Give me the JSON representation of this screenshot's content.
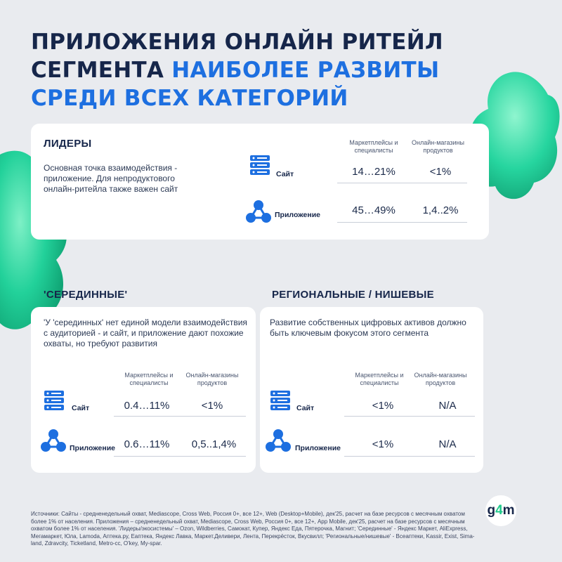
{
  "title": {
    "line_dark": "ПРИЛОЖЕНИЯ ОНЛАЙН РИТЕЙЛ СЕГМЕНТА",
    "line_blue": "НАИБОЛЕЕ РАЗВИТЫ СРЕДИ ВСЕХ КАТЕГОРИЙ"
  },
  "leaders": {
    "heading": "ЛИДЕРЫ",
    "description": "Основная точка взаимодействия - приложение. Для непродуктового онлайн-ритейла также важен  сайт",
    "col1": "Маркетплейсы и специалисты",
    "col2": "Онлайн-магазины продуктов",
    "rows": [
      {
        "label": "Сайт",
        "icon": "server-icon",
        "v1": "14…21%",
        "v2": "<1%"
      },
      {
        "label": "Приложение",
        "icon": "app-network-icon",
        "v1": "45…49%",
        "v2": "1,4..2%"
      }
    ]
  },
  "middle": {
    "heading": "'СЕРЕДИННЫЕ'",
    "description": "'У 'серединных' нет единой модели взаимодействия с аудиторией - и сайт, и приложение дают похожие охваты, но требуют развития",
    "col1": "Маркетплейсы и специалисты",
    "col2": "Онлайн-магазины продуктов",
    "rows": [
      {
        "label": "Сайт",
        "icon": "server-icon",
        "v1": "0.4…11%",
        "v2": "<1%"
      },
      {
        "label": "Приложение",
        "icon": "app-network-icon",
        "v1": "0.6…11%",
        "v2": "0,5..1,4%"
      }
    ]
  },
  "regional": {
    "heading": "РЕГИОНАЛЬНЫЕ / НИШЕВЫЕ",
    "description": "Развитие собственных цифровых активов должно быть ключевым фокусом этого сегмента",
    "col1": "Маркетплейсы и специалисты",
    "col2": "Онлайн-магазины продуктов",
    "rows": [
      {
        "label": "Сайт",
        "icon": "server-icon",
        "v1": "<1%",
        "v2": "N/A"
      },
      {
        "label": "Приложение",
        "icon": "app-network-icon",
        "v1": "<1%",
        "v2": "N/A"
      }
    ]
  },
  "sources": "Источники: Сайты  - средненедельный охват, Mediascope, Cross Web, Россия 0+, все 12+, Web (Desktop+Mobile), дек'25, расчет на базе ресурсов с месячным охватом более 1% от населения. Приложения – средненедельный охват, Mediascope, Cross Web, Россия 0+, все 12+, App Mobile, дек'25, расчет на базе ресурсов с месячным охватом более 1% от населения. 'Лидеры/экосистемы' – Ozon, Wildberries, Самокат, Купер, Яндекс Еда, Пятерочка, Магнит; 'Серединные' - Яндекс Маркет, AliExpress, Мегамаркет, Юла, Lamoda, Аптека.ру, Еаптека, Яндекс Лавка, Маркет.Деливери, Лента, Перекрёсток, Вкусвилл; 'Региональные/нишевые' - Всеаптеки, Kassir, Exist, Sima-land, Zdravcity, Ticketland, Metro-cc, O'key, My-spar.",
  "logo": {
    "g": "g",
    "four": "4",
    "m": "m"
  },
  "colors": {
    "accent_blue": "#1d6fe0",
    "dark_navy": "#16264a",
    "blob_green": "#22d19a",
    "background": "#e9ebef"
  }
}
